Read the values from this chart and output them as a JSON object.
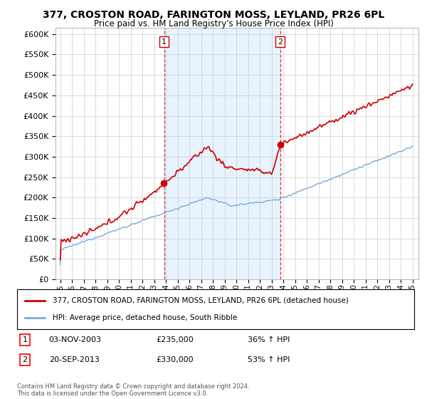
{
  "title": "377, CROSTON ROAD, FARINGTON MOSS, LEYLAND, PR26 6PL",
  "subtitle": "Price paid vs. HM Land Registry's House Price Index (HPI)",
  "ytick_vals": [
    0,
    50000,
    100000,
    150000,
    200000,
    250000,
    300000,
    350000,
    400000,
    450000,
    500000,
    550000,
    600000
  ],
  "sale1_year": 2003.84,
  "sale1_price": 235000,
  "sale2_year": 2013.72,
  "sale2_price": 330000,
  "sale1_label": "1",
  "sale2_label": "2",
  "sale1_date": "03-NOV-2003",
  "sale1_display": "£235,000",
  "sale1_hpi": "36% ↑ HPI",
  "sale2_date": "20-SEP-2013",
  "sale2_display": "£330,000",
  "sale2_hpi": "53% ↑ HPI",
  "red_line_color": "#cc0000",
  "blue_line_color": "#7aaadd",
  "shade_color": "#ddeeff",
  "grid_color": "#cccccc",
  "legend_label_red": "377, CROSTON ROAD, FARINGTON MOSS, LEYLAND, PR26 6PL (detached house)",
  "legend_label_blue": "HPI: Average price, detached house, South Ribble",
  "footer": "Contains HM Land Registry data © Crown copyright and database right 2024.\nThis data is licensed under the Open Government Licence v3.0.",
  "background_color": "#ffffff"
}
